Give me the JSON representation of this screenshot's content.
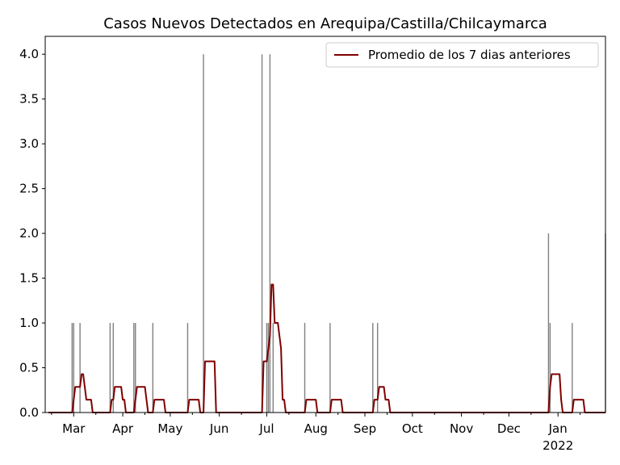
{
  "chart_data": {
    "type": "bar",
    "title": "Casos Nuevos Detectados en Arequipa/Castilla/Chilcaymarca",
    "xlabel": "",
    "ylabel": "",
    "x_start": "2021-02-11",
    "x_end": "2022-01-31",
    "ylim": [
      0,
      4.2
    ],
    "y_ticks": [
      "0.0",
      "0.5",
      "1.0",
      "1.5",
      "2.0",
      "2.5",
      "3.0",
      "3.5",
      "4.0"
    ],
    "x_ticks": [
      {
        "date": "2021-03-01",
        "label": "Mar"
      },
      {
        "date": "2021-04-01",
        "label": "Apr"
      },
      {
        "date": "2021-05-01",
        "label": "May"
      },
      {
        "date": "2021-06-01",
        "label": "Jun"
      },
      {
        "date": "2021-07-01",
        "label": "Jul"
      },
      {
        "date": "2021-08-01",
        "label": "Aug"
      },
      {
        "date": "2021-09-01",
        "label": "Sep"
      },
      {
        "date": "2021-10-01",
        "label": "Oct"
      },
      {
        "date": "2021-11-01",
        "label": "Nov"
      },
      {
        "date": "2021-12-01",
        "label": "Dec"
      },
      {
        "date": "2022-01-01",
        "label": "Jan",
        "sublabel": "2022"
      }
    ],
    "daily_cases": [
      {
        "date": "2021-02-28",
        "value": 1
      },
      {
        "date": "2021-03-01",
        "value": 1
      },
      {
        "date": "2021-03-05",
        "value": 1
      },
      {
        "date": "2021-03-24",
        "value": 1
      },
      {
        "date": "2021-03-26",
        "value": 1
      },
      {
        "date": "2021-04-08",
        "value": 1
      },
      {
        "date": "2021-04-09",
        "value": 1
      },
      {
        "date": "2021-04-20",
        "value": 1
      },
      {
        "date": "2021-05-12",
        "value": 1
      },
      {
        "date": "2021-05-22",
        "value": 4
      },
      {
        "date": "2021-06-28",
        "value": 4
      },
      {
        "date": "2021-07-01",
        "value": 1
      },
      {
        "date": "2021-07-02",
        "value": 1
      },
      {
        "date": "2021-07-03",
        "value": 4
      },
      {
        "date": "2021-07-05",
        "value": 1
      },
      {
        "date": "2021-07-25",
        "value": 1
      },
      {
        "date": "2021-08-10",
        "value": 1
      },
      {
        "date": "2021-09-06",
        "value": 1
      },
      {
        "date": "2021-09-09",
        "value": 1
      },
      {
        "date": "2021-12-26",
        "value": 2
      },
      {
        "date": "2021-12-27",
        "value": 1
      },
      {
        "date": "2022-01-10",
        "value": 1
      },
      {
        "date": "2022-01-31",
        "value": 2
      }
    ],
    "series": [
      {
        "name": "Promedio de los 7 dias anteriores",
        "color": "#800000",
        "kind": "line"
      }
    ],
    "bar_color": "#808080",
    "legend_position": "top-right",
    "grid": false
  }
}
